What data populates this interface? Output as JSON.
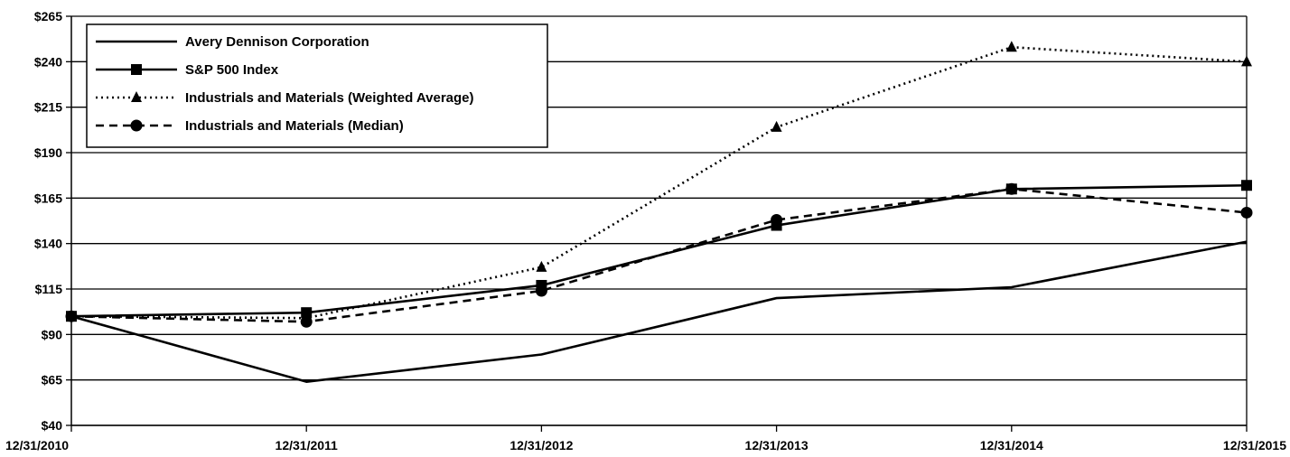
{
  "chart_data": {
    "type": "line",
    "title": "",
    "xlabel": "",
    "ylabel": "",
    "categories": [
      "12/31/2010",
      "12/31/2011",
      "12/31/2012",
      "12/31/2013",
      "12/31/2014",
      "12/31/2015"
    ],
    "y_ticks": [
      "$40",
      "$65",
      "$90",
      "$115",
      "$140",
      "$165",
      "$190",
      "$215",
      "$240",
      "$265"
    ],
    "y_tick_values": [
      40,
      65,
      90,
      115,
      140,
      165,
      190,
      215,
      240,
      265
    ],
    "ylim": [
      40,
      265
    ],
    "grid": "horizontal",
    "legend_position": "top-left",
    "series": [
      {
        "name": "Avery Dennison Corporation",
        "values": [
          100,
          64,
          79,
          110,
          116,
          141
        ],
        "marker": "none",
        "dash": "solid",
        "color": "#000000"
      },
      {
        "name": "S&P 500 Index",
        "values": [
          100,
          102,
          117,
          150,
          170,
          172
        ],
        "marker": "square",
        "dash": "solid",
        "color": "#000000"
      },
      {
        "name": "Industrials and Materials (Weighted Average)",
        "values": [
          100,
          99,
          127,
          204,
          248,
          240
        ],
        "marker": "triangle",
        "dash": "dotted",
        "color": "#000000"
      },
      {
        "name": "Industrials and Materials (Median)",
        "values": [
          100,
          97,
          114,
          153,
          170,
          157
        ],
        "marker": "circle",
        "dash": "dashed",
        "color": "#000000"
      }
    ]
  }
}
